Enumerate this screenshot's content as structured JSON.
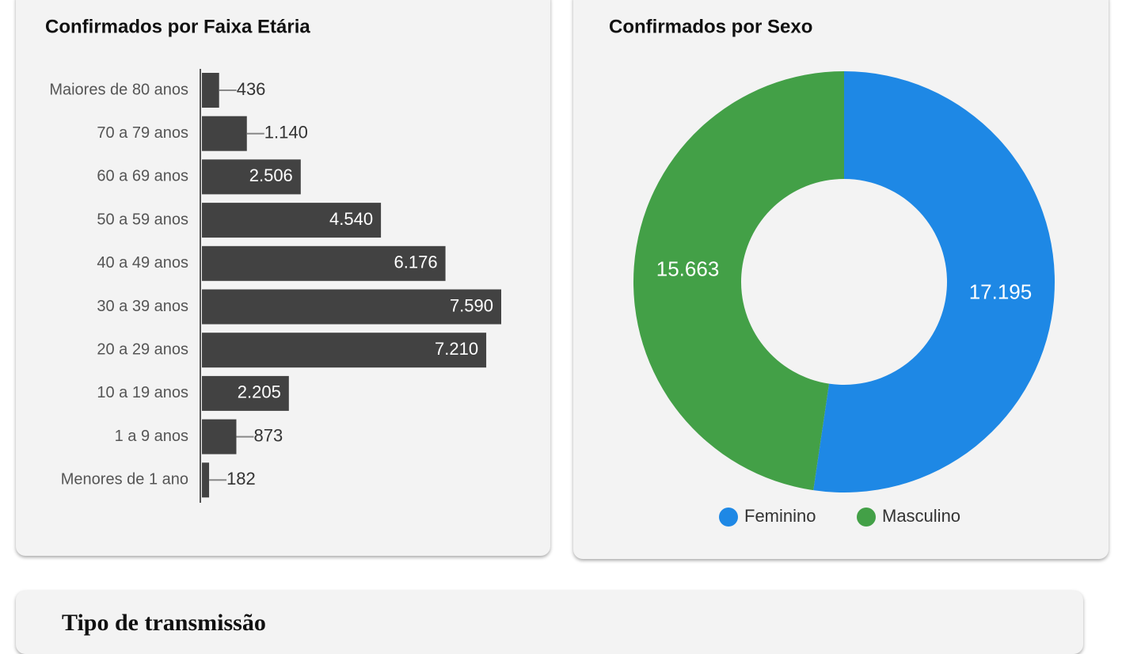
{
  "chart_data": [
    {
      "type": "hbar",
      "title": "Confirmados por Faixa Etária",
      "categories": [
        "Maiores de 80 anos",
        "70 a 79 anos",
        "60 a 69 anos",
        "50 a 59 anos",
        "40 a 49 anos",
        "30 a 39 anos",
        "20 a 29 anos",
        "10 a 19 anos",
        "1 a 9 anos",
        "Menores de 1 ano"
      ],
      "values": [
        436,
        1140,
        2506,
        4540,
        6176,
        7590,
        7210,
        2205,
        873,
        182
      ],
      "value_labels": [
        "436",
        "1.140",
        "2.506",
        "4.540",
        "6.176",
        "7.590",
        "7.210",
        "2.205",
        "873",
        "182"
      ],
      "color": "#424242"
    },
    {
      "type": "donut",
      "title": "Confirmados por Sexo",
      "categories": [
        "Feminino",
        "Masculino"
      ],
      "values": [
        17195,
        15663
      ],
      "value_labels": [
        "17.195",
        "15.663"
      ],
      "colors": [
        "#1e88e5",
        "#43a047"
      ],
      "legend": "bottom"
    }
  ],
  "footer_card": {
    "title": "Tipo de transmissão"
  }
}
